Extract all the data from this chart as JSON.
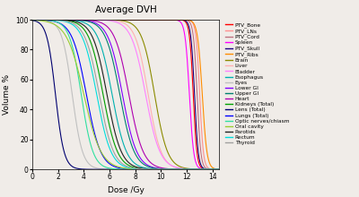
{
  "title": "Average DVH",
  "xlabel": "Dose /Gy",
  "ylabel": "Volume %",
  "xlim": [
    0,
    14.5
  ],
  "ylim": [
    0,
    100
  ],
  "xticks": [
    0,
    2,
    4,
    6,
    8,
    10,
    12,
    14
  ],
  "yticks": [
    0,
    20,
    40,
    60,
    80,
    100
  ],
  "fig_facecolor": "#f0ece8",
  "axes_facecolor": "#f0ece8",
  "structures_params": [
    [
      "PTV_Bone",
      "#ff0000",
      12.5,
      7.0
    ],
    [
      "PTV_LNs",
      "#ff9090",
      13.0,
      7.0
    ],
    [
      "PTV_Cord",
      "#c07080",
      12.8,
      7.0
    ],
    [
      "Spleen",
      "#ff00ff",
      12.2,
      6.0
    ],
    [
      "PTV_Skull",
      "#1a0080",
      12.6,
      7.0
    ],
    [
      "PTV_Ribs",
      "#ff8c00",
      13.2,
      5.5
    ],
    [
      "Brain",
      "#8b8b00",
      9.5,
      2.0
    ],
    [
      "Liver",
      "#ffb0b0",
      9.0,
      2.0
    ],
    [
      "Bladder",
      "#ff80ff",
      8.8,
      1.8
    ],
    [
      "Esophagus",
      "#00b0b0",
      6.2,
      1.8
    ],
    [
      "Eyes",
      "#c0c0c0",
      3.1,
      2.5
    ],
    [
      "Lower GI",
      "#8000ff",
      7.0,
      1.8
    ],
    [
      "Upper GI",
      "#008070",
      6.8,
      1.8
    ],
    [
      "Heart",
      "#b000b0",
      7.5,
      1.8
    ],
    [
      "Kidneys (Total)",
      "#00a000",
      5.5,
      1.8
    ],
    [
      "Lens (Total)",
      "#000070",
      1.8,
      3.0
    ],
    [
      "Lungs (Total)",
      "#0000ff",
      4.2,
      1.8
    ],
    [
      "Optic nerves/chiasm",
      "#30e0a0",
      3.8,
      2.2
    ],
    [
      "Oral cavity",
      "#9acd32",
      4.0,
      1.5
    ],
    [
      "Parotids",
      "#202020",
      5.8,
      1.8
    ],
    [
      "Rectum",
      "#00dddd",
      5.0,
      1.8
    ],
    [
      "Thyroid",
      "#a0a0a0",
      5.2,
      1.8
    ]
  ]
}
